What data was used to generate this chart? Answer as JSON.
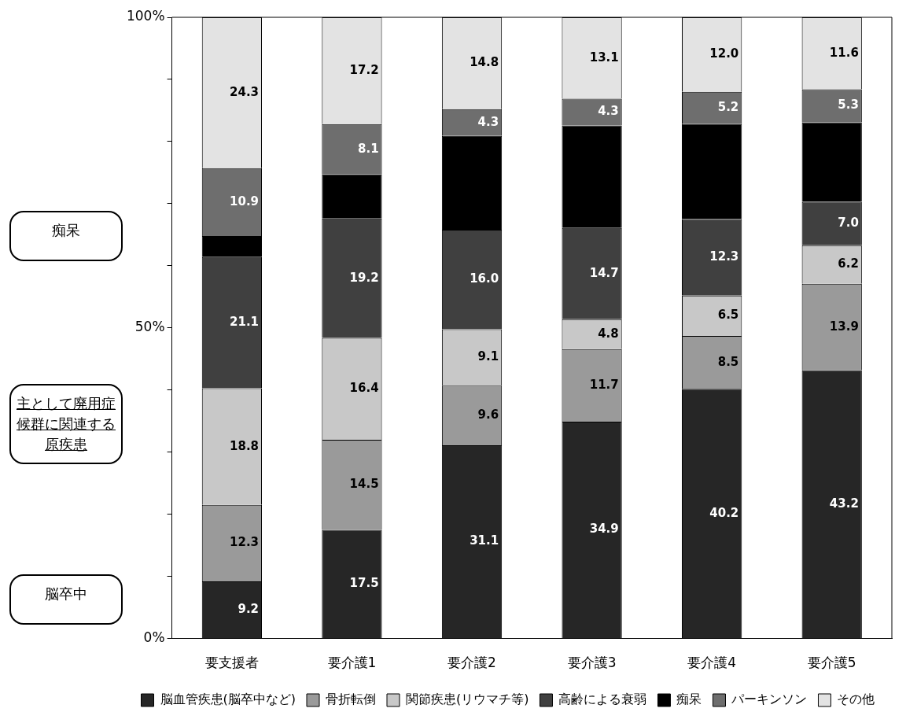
{
  "chart_data": {
    "type": "bar",
    "stacked": true,
    "categories": [
      "要支援者",
      "要介護1",
      "要介護2",
      "要介護3",
      "要介護4",
      "要介護5"
    ],
    "series": [
      {
        "name": "脳血管疾患(脳卒中など)",
        "color": "#262626",
        "values": [
          9.2,
          17.5,
          31.1,
          34.9,
          40.2,
          43.2
        ],
        "value_labels": [
          "9.2",
          "17.5",
          "31.1",
          "34.9",
          "40.2",
          "43.2"
        ]
      },
      {
        "name": "骨折転倒",
        "color": "#9a9a9a",
        "values": [
          12.3,
          14.5,
          9.6,
          11.7,
          8.5,
          13.9
        ],
        "value_labels": [
          "12.3",
          "14.5",
          "9.6",
          "11.7",
          "8.5",
          "13.9"
        ]
      },
      {
        "name": "関節疾患(リウマチ等)",
        "color": "#c8c8c8",
        "values": [
          18.8,
          16.4,
          9.1,
          4.8,
          6.5,
          6.2
        ],
        "value_labels": [
          "18.8",
          "16.4",
          "9.1",
          "4.8",
          "6.5",
          "6.2"
        ]
      },
      {
        "name": "高齢による衰弱",
        "color": "#404040",
        "values": [
          21.1,
          19.2,
          16.0,
          14.7,
          12.3,
          7.0
        ],
        "value_labels": [
          "21.1",
          "19.2",
          "16.0",
          "14.7",
          "12.3",
          "7.0"
        ]
      },
      {
        "name": "痴呆",
        "color": "#000000",
        "values": [
          3.4,
          7.1,
          15.1,
          16.5,
          15.3,
          12.8
        ]
      },
      {
        "name": "パーキンソン",
        "color": "#6e6e6e",
        "values": [
          10.9,
          8.1,
          4.3,
          4.3,
          5.2,
          5.3
        ],
        "value_labels": [
          "10.9",
          "8.1",
          "4.3",
          "4.3",
          "5.2",
          "5.3"
        ]
      },
      {
        "name": "その他",
        "color": "#e3e3e3",
        "values": [
          24.3,
          17.2,
          14.8,
          13.1,
          12.0,
          11.6
        ],
        "value_labels": [
          "24.3",
          "17.2",
          "14.8",
          "13.1",
          "12.0",
          "11.6"
        ]
      }
    ],
    "ylim": [
      0,
      100
    ],
    "yticks": [
      {
        "value": 0,
        "label": "0%"
      },
      {
        "value": 10,
        "label": null
      },
      {
        "value": 20,
        "label": null
      },
      {
        "value": 30,
        "label": null
      },
      {
        "value": 40,
        "label": null
      },
      {
        "value": 50,
        "label": "50%"
      },
      {
        "value": 60,
        "label": null
      },
      {
        "value": 70,
        "label": null
      },
      {
        "value": 80,
        "label": null
      },
      {
        "value": 90,
        "label": null
      },
      {
        "value": 100,
        "label": "100%"
      }
    ],
    "annotations": [
      "痴呆",
      "主として廃用症候群に関連する原疾患",
      "脳卒中"
    ],
    "legend": "bottom",
    "grid": false
  }
}
